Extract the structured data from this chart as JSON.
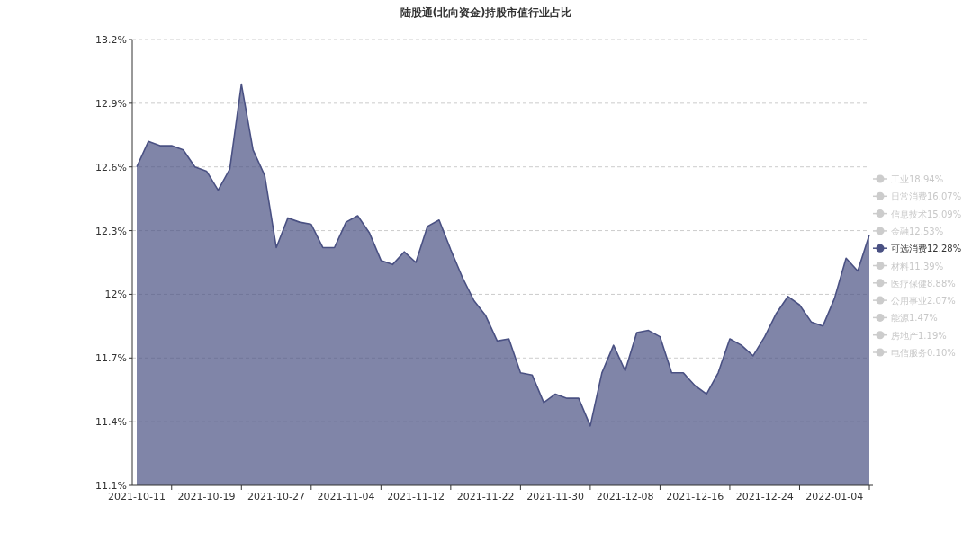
{
  "chart_data": {
    "type": "area",
    "title": "陆股通(北向资金)持股市值行业占比",
    "categories": [
      "2021-10-11",
      null,
      null,
      null,
      null,
      null,
      "2021-10-19",
      null,
      null,
      null,
      null,
      null,
      "2021-10-27",
      null,
      null,
      null,
      null,
      null,
      "2021-11-04",
      null,
      null,
      null,
      null,
      null,
      "2021-11-12",
      null,
      null,
      null,
      null,
      null,
      "2021-11-22",
      null,
      null,
      null,
      null,
      null,
      "2021-11-30",
      null,
      null,
      null,
      null,
      null,
      "2021-12-08",
      null,
      null,
      null,
      null,
      null,
      "2021-12-16",
      null,
      null,
      null,
      null,
      null,
      "2021-12-24",
      null,
      null,
      null,
      null,
      null,
      "2022-01-04",
      null,
      null,
      null
    ],
    "ylim": [
      11.1,
      13.2
    ],
    "yticks": [
      {
        "value": 11.1,
        "label": "11.1%"
      },
      {
        "value": 11.4,
        "label": "11.4%"
      },
      {
        "value": 11.7,
        "label": "11.7%"
      },
      {
        "value": 12,
        "label": "12%"
      },
      {
        "value": 12.3,
        "label": "12.3%"
      },
      {
        "value": 12.6,
        "label": "12.6%"
      },
      {
        "value": 12.9,
        "label": "12.9%"
      },
      {
        "value": 13.2,
        "label": "13.2%"
      }
    ],
    "grid": "y",
    "legend": "right",
    "series": [
      {
        "name": "工业18.94%",
        "color": "#cccccc",
        "values": [
          null,
          null,
          null,
          null,
          null,
          null,
          null,
          null,
          null,
          null,
          null,
          null,
          null,
          null,
          null,
          null,
          null,
          null,
          null,
          null,
          null,
          null,
          null,
          null,
          null,
          null,
          null,
          null,
          null,
          null,
          null,
          null,
          null,
          null,
          null,
          null,
          null,
          null,
          null,
          null,
          null,
          null,
          null,
          null,
          null,
          null,
          null,
          null,
          null,
          null,
          null,
          null,
          null,
          null,
          null,
          null,
          null,
          null,
          null,
          null,
          null,
          null,
          null,
          null
        ]
      },
      {
        "name": "日常消费16.07%",
        "color": "#cccccc",
        "values": [
          null,
          null,
          null,
          null,
          null,
          null,
          null,
          null,
          null,
          null,
          null,
          null,
          null,
          null,
          null,
          null,
          null,
          null,
          null,
          null,
          null,
          null,
          null,
          null,
          null,
          null,
          null,
          null,
          null,
          null,
          null,
          null,
          null,
          null,
          null,
          null,
          null,
          null,
          null,
          null,
          null,
          null,
          null,
          null,
          null,
          null,
          null,
          null,
          null,
          null,
          null,
          null,
          null,
          null,
          null,
          null,
          null,
          null,
          null,
          null,
          null,
          null,
          null,
          null
        ]
      },
      {
        "name": "信息技术15.09%",
        "color": "#cccccc",
        "values": [
          null,
          null,
          null,
          null,
          null,
          null,
          null,
          null,
          null,
          null,
          null,
          null,
          null,
          null,
          null,
          null,
          null,
          null,
          null,
          null,
          null,
          null,
          null,
          null,
          null,
          null,
          null,
          null,
          null,
          null,
          null,
          null,
          null,
          null,
          null,
          null,
          null,
          null,
          null,
          null,
          null,
          null,
          null,
          null,
          null,
          null,
          null,
          null,
          null,
          null,
          null,
          null,
          null,
          null,
          null,
          null,
          null,
          null,
          null,
          null,
          null,
          null,
          null,
          null
        ]
      },
      {
        "name": "金融12.53%",
        "color": "#cccccc",
        "values": [
          null,
          null,
          null,
          null,
          null,
          null,
          null,
          null,
          null,
          null,
          null,
          null,
          null,
          null,
          null,
          null,
          null,
          null,
          null,
          null,
          null,
          null,
          null,
          null,
          null,
          null,
          null,
          null,
          null,
          null,
          null,
          null,
          null,
          null,
          null,
          null,
          null,
          null,
          null,
          null,
          null,
          null,
          null,
          null,
          null,
          null,
          null,
          null,
          null,
          null,
          null,
          null,
          null,
          null,
          null,
          null,
          null,
          null,
          null,
          null,
          null,
          null,
          null,
          null
        ]
      },
      {
        "name": "可选消费12.28%",
        "color": "#4a5183",
        "values": [
          12.6,
          12.72,
          12.7,
          12.7,
          12.68,
          12.6,
          12.58,
          12.49,
          12.59,
          12.99,
          12.68,
          12.56,
          12.22,
          12.36,
          12.34,
          12.33,
          12.22,
          12.22,
          12.34,
          12.37,
          12.29,
          12.16,
          12.14,
          12.2,
          12.15,
          12.32,
          12.35,
          12.21,
          12.08,
          11.97,
          11.9,
          11.78,
          11.79,
          11.63,
          11.62,
          11.49,
          11.53,
          11.51,
          11.51,
          11.38,
          11.63,
          11.76,
          11.64,
          11.82,
          11.83,
          11.8,
          11.63,
          11.63,
          11.57,
          11.53,
          11.63,
          11.79,
          11.76,
          11.71,
          11.8,
          11.91,
          11.99,
          11.95,
          11.87,
          11.85,
          11.98,
          12.17,
          12.11,
          12.28
        ]
      },
      {
        "name": "材料11.39%",
        "color": "#cccccc",
        "values": [
          null,
          null,
          null,
          null,
          null,
          null,
          null,
          null,
          null,
          null,
          null,
          null,
          null,
          null,
          null,
          null,
          null,
          null,
          null,
          null,
          null,
          null,
          null,
          null,
          null,
          null,
          null,
          null,
          null,
          null,
          null,
          null,
          null,
          null,
          null,
          null,
          null,
          null,
          null,
          null,
          null,
          null,
          null,
          null,
          null,
          null,
          null,
          null,
          null,
          null,
          null,
          null,
          null,
          null,
          null,
          null,
          null,
          null,
          null,
          null,
          null,
          null,
          null,
          null
        ]
      },
      {
        "name": "医疗保健8.88%",
        "color": "#cccccc",
        "values": [
          null,
          null,
          null,
          null,
          null,
          null,
          null,
          null,
          null,
          null,
          null,
          null,
          null,
          null,
          null,
          null,
          null,
          null,
          null,
          null,
          null,
          null,
          null,
          null,
          null,
          null,
          null,
          null,
          null,
          null,
          null,
          null,
          null,
          null,
          null,
          null,
          null,
          null,
          null,
          null,
          null,
          null,
          null,
          null,
          null,
          null,
          null,
          null,
          null,
          null,
          null,
          null,
          null,
          null,
          null,
          null,
          null,
          null,
          null,
          null,
          null,
          null,
          null,
          null
        ]
      },
      {
        "name": "公用事业2.07%",
        "color": "#cccccc",
        "values": [
          null,
          null,
          null,
          null,
          null,
          null,
          null,
          null,
          null,
          null,
          null,
          null,
          null,
          null,
          null,
          null,
          null,
          null,
          null,
          null,
          null,
          null,
          null,
          null,
          null,
          null,
          null,
          null,
          null,
          null,
          null,
          null,
          null,
          null,
          null,
          null,
          null,
          null,
          null,
          null,
          null,
          null,
          null,
          null,
          null,
          null,
          null,
          null,
          null,
          null,
          null,
          null,
          null,
          null,
          null,
          null,
          null,
          null,
          null,
          null,
          null,
          null,
          null,
          null
        ]
      },
      {
        "name": "能源1.47%",
        "color": "#cccccc",
        "values": [
          null,
          null,
          null,
          null,
          null,
          null,
          null,
          null,
          null,
          null,
          null,
          null,
          null,
          null,
          null,
          null,
          null,
          null,
          null,
          null,
          null,
          null,
          null,
          null,
          null,
          null,
          null,
          null,
          null,
          null,
          null,
          null,
          null,
          null,
          null,
          null,
          null,
          null,
          null,
          null,
          null,
          null,
          null,
          null,
          null,
          null,
          null,
          null,
          null,
          null,
          null,
          null,
          null,
          null,
          null,
          null,
          null,
          null,
          null,
          null,
          null,
          null,
          null,
          null
        ]
      },
      {
        "name": "房地产1.19%",
        "color": "#cccccc",
        "values": [
          null,
          null,
          null,
          null,
          null,
          null,
          null,
          null,
          null,
          null,
          null,
          null,
          null,
          null,
          null,
          null,
          null,
          null,
          null,
          null,
          null,
          null,
          null,
          null,
          null,
          null,
          null,
          null,
          null,
          null,
          null,
          null,
          null,
          null,
          null,
          null,
          null,
          null,
          null,
          null,
          null,
          null,
          null,
          null,
          null,
          null,
          null,
          null,
          null,
          null,
          null,
          null,
          null,
          null,
          null,
          null,
          null,
          null,
          null,
          null,
          null,
          null,
          null,
          null
        ]
      },
      {
        "name": "电信服务0.10%",
        "color": "#cccccc",
        "values": [
          null,
          null,
          null,
          null,
          null,
          null,
          null,
          null,
          null,
          null,
          null,
          null,
          null,
          null,
          null,
          null,
          null,
          null,
          null,
          null,
          null,
          null,
          null,
          null,
          null,
          null,
          null,
          null,
          null,
          null,
          null,
          null,
          null,
          null,
          null,
          null,
          null,
          null,
          null,
          null,
          null,
          null,
          null,
          null,
          null,
          null,
          null,
          null,
          null,
          null,
          null,
          null,
          null,
          null,
          null,
          null,
          null,
          null,
          null,
          null,
          null,
          null,
          null,
          null
        ]
      }
    ]
  }
}
